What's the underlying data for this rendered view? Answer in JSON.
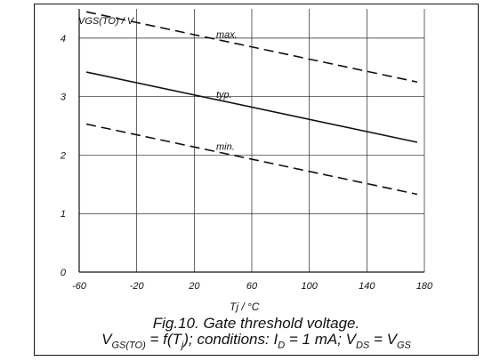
{
  "chart_data": {
    "type": "line",
    "title": "",
    "xlabel": "Tj / °C",
    "ylabel": "VGS(TO) / V",
    "xlim": [
      -60,
      180
    ],
    "ylim": [
      0,
      4.5
    ],
    "grid": true,
    "x_ticks": [
      "-60",
      "-20",
      "20",
      "60",
      "100",
      "140",
      "180"
    ],
    "y_ticks": [
      "0",
      "1",
      "2",
      "3",
      "4"
    ],
    "series": [
      {
        "name": "max.",
        "x": [
          -55,
          175
        ],
        "y": [
          4.45,
          3.25
        ]
      },
      {
        "name": "typ.",
        "x": [
          -55,
          175
        ],
        "y": [
          3.42,
          2.22
        ]
      },
      {
        "name": "min.",
        "x": [
          -55,
          175
        ],
        "y": [
          2.53,
          1.33
        ]
      }
    ]
  },
  "caption": {
    "line1": "Fig.10.   Gate threshold voltage.",
    "line2": {
      "v1": "V",
      "s1": "GS(TO)",
      "t1": " = f(T",
      "s2": "j",
      "t2": "); conditions: I",
      "s3": "D",
      "t3": " = 1 mA; V",
      "s4": "DS",
      "t4": " = V",
      "s5": "GS"
    }
  }
}
